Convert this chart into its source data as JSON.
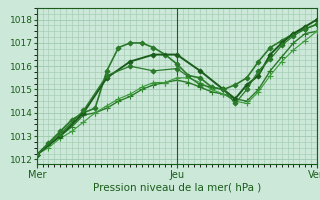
{
  "xlabel": "Pression niveau de la mer( hPa )",
  "xlim": [
    0,
    48
  ],
  "ylim": [
    1011.8,
    1018.5
  ],
  "yticks": [
    1012,
    1013,
    1014,
    1015,
    1016,
    1017,
    1018
  ],
  "xtick_labels": [
    "Mer",
    "Jeu",
    "Ven"
  ],
  "xtick_positions": [
    0,
    24,
    48
  ],
  "vlines": [
    0,
    24,
    48
  ],
  "bg_color": "#cce8d8",
  "grid_color": "#a0c8b0",
  "dark_green": "#1a5c1a",
  "mid_green": "#2a7a2a",
  "light_green": "#3a9a3a",
  "series": [
    {
      "x": [
        0,
        2,
        4,
        6,
        8,
        10,
        12,
        14,
        16,
        18,
        20,
        22,
        24,
        26,
        28,
        30,
        32,
        34,
        36,
        38,
        40,
        42,
        44,
        46,
        48
      ],
      "y": [
        1012.2,
        1012.7,
        1013.2,
        1013.7,
        1014.0,
        1014.2,
        1015.8,
        1016.8,
        1017.0,
        1017.0,
        1016.8,
        1016.5,
        1016.1,
        1015.6,
        1015.5,
        1015.1,
        1015.0,
        1015.2,
        1015.5,
        1016.2,
        1016.8,
        1017.1,
        1017.4,
        1017.6,
        1017.8
      ],
      "color": "#2a7a2a",
      "lw": 1.2,
      "marker": "D",
      "ms": 2.5
    },
    {
      "x": [
        0,
        2,
        4,
        6,
        8,
        10,
        12,
        14,
        16,
        18,
        20,
        22,
        24,
        26,
        28,
        30,
        32,
        34,
        36,
        38,
        40,
        42,
        44,
        46,
        48
      ],
      "y": [
        1012.2,
        1012.6,
        1013.0,
        1013.4,
        1013.9,
        1014.0,
        1014.2,
        1014.5,
        1014.7,
        1015.0,
        1015.2,
        1015.3,
        1015.4,
        1015.3,
        1015.1,
        1014.9,
        1014.8,
        1014.6,
        1014.5,
        1015.0,
        1015.8,
        1016.4,
        1017.0,
        1017.4,
        1017.5
      ],
      "color": "#2a7a2a",
      "lw": 1.0,
      "marker": "+",
      "ms": 4.5
    },
    {
      "x": [
        0,
        2,
        4,
        6,
        8,
        10,
        12,
        14,
        16,
        18,
        20,
        22,
        24,
        26,
        28,
        30,
        32,
        34,
        36,
        38,
        40,
        42,
        44,
        46,
        48
      ],
      "y": [
        1012.2,
        1012.5,
        1012.9,
        1013.2,
        1013.6,
        1014.0,
        1014.3,
        1014.6,
        1014.8,
        1015.1,
        1015.3,
        1015.3,
        1015.5,
        1015.5,
        1015.3,
        1015.0,
        1014.8,
        1014.5,
        1014.4,
        1014.9,
        1015.6,
        1016.2,
        1016.7,
        1017.1,
        1017.5
      ],
      "color": "#3a9a3a",
      "lw": 0.8,
      "marker": "+",
      "ms": 4.0
    },
    {
      "x": [
        0,
        4,
        8,
        12,
        16,
        20,
        24,
        28,
        32,
        34,
        36,
        38,
        40,
        42,
        44,
        46,
        48
      ],
      "y": [
        1012.2,
        1013.0,
        1014.0,
        1015.5,
        1016.2,
        1016.5,
        1016.5,
        1015.8,
        1015.0,
        1014.6,
        1015.2,
        1015.6,
        1016.5,
        1017.0,
        1017.4,
        1017.7,
        1018.0
      ],
      "color": "#1a5c1a",
      "lw": 1.4,
      "marker": "D",
      "ms": 2.5
    },
    {
      "x": [
        0,
        4,
        8,
        12,
        16,
        20,
        24,
        28,
        32,
        34,
        36,
        38,
        40,
        42,
        44,
        46,
        48
      ],
      "y": [
        1012.2,
        1013.1,
        1014.1,
        1015.6,
        1016.0,
        1015.8,
        1015.9,
        1015.2,
        1015.0,
        1014.4,
        1015.0,
        1015.8,
        1016.3,
        1016.9,
        1017.3,
        1017.6,
        1017.8
      ],
      "color": "#2a7a2a",
      "lw": 0.9,
      "marker": "D",
      "ms": 2.5
    }
  ]
}
